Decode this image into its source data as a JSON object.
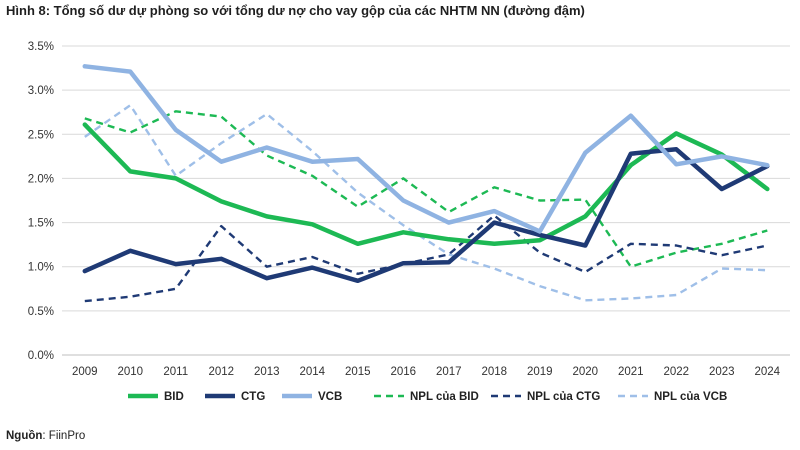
{
  "title": "Hình 8: Tổng số dư dự phòng so với tổng dư nợ cho vay gộp của các NHTM NN (đường đậm)",
  "source": {
    "label": "Nguồn",
    "sep": ": ",
    "value": "FiinPro"
  },
  "chart_data": {
    "type": "line",
    "title": "Hình 8: Tổng số dư dự phòng so với tổng dư nợ cho vay gộp của các NHTM NN (đường đậm)",
    "xlabel": "",
    "ylabel": "",
    "ylim": [
      0,
      3.5
    ],
    "yticks": [
      "0.0%",
      "0.5%",
      "1.0%",
      "1.5%",
      "2.0%",
      "2.5%",
      "3.0%",
      "3.5%"
    ],
    "grid": true,
    "legend_position": "bottom",
    "categories": [
      "2009",
      "2010",
      "2011",
      "2012",
      "2013",
      "2014",
      "2015",
      "2016",
      "2017",
      "2018",
      "2019",
      "2020",
      "2021",
      "2022",
      "2023",
      "2024"
    ],
    "series": [
      {
        "name": "BID",
        "style": "solid",
        "color": "#1db954",
        "values": [
          2.61,
          2.08,
          2.0,
          1.74,
          1.57,
          1.48,
          1.26,
          1.39,
          1.31,
          1.26,
          1.3,
          1.57,
          2.15,
          2.51,
          2.27,
          1.88
        ]
      },
      {
        "name": "CTG",
        "style": "solid",
        "color": "#1f3a75",
        "values": [
          0.95,
          1.18,
          1.03,
          1.09,
          0.87,
          0.99,
          0.84,
          1.04,
          1.05,
          1.5,
          1.36,
          1.24,
          2.28,
          2.33,
          1.88,
          2.14
        ]
      },
      {
        "name": "VCB",
        "style": "solid",
        "color": "#8fb3e2",
        "values": [
          3.27,
          3.21,
          2.55,
          2.19,
          2.35,
          2.19,
          2.22,
          1.75,
          1.5,
          1.63,
          1.4,
          2.29,
          2.71,
          2.16,
          2.25,
          2.15
        ]
      },
      {
        "name": "NPL của BID",
        "style": "dashed",
        "color": "#1db954",
        "values": [
          2.68,
          2.52,
          2.76,
          2.7,
          2.26,
          2.03,
          1.68,
          2.0,
          1.62,
          1.9,
          1.75,
          1.76,
          1.0,
          1.16,
          1.26,
          1.41
        ]
      },
      {
        "name": "NPL của CTG",
        "style": "dashed",
        "color": "#1f3a75",
        "values": [
          0.61,
          0.66,
          0.75,
          1.46,
          1.0,
          1.11,
          0.92,
          1.03,
          1.14,
          1.58,
          1.16,
          0.94,
          1.26,
          1.24,
          1.13,
          1.24
        ]
      },
      {
        "name": "NPL của VCB",
        "style": "dashed",
        "color": "#9fbfe8",
        "values": [
          2.47,
          2.83,
          2.03,
          2.4,
          2.73,
          2.31,
          1.84,
          1.47,
          1.14,
          0.98,
          0.78,
          0.62,
          0.64,
          0.68,
          0.98,
          0.96
        ]
      }
    ]
  }
}
